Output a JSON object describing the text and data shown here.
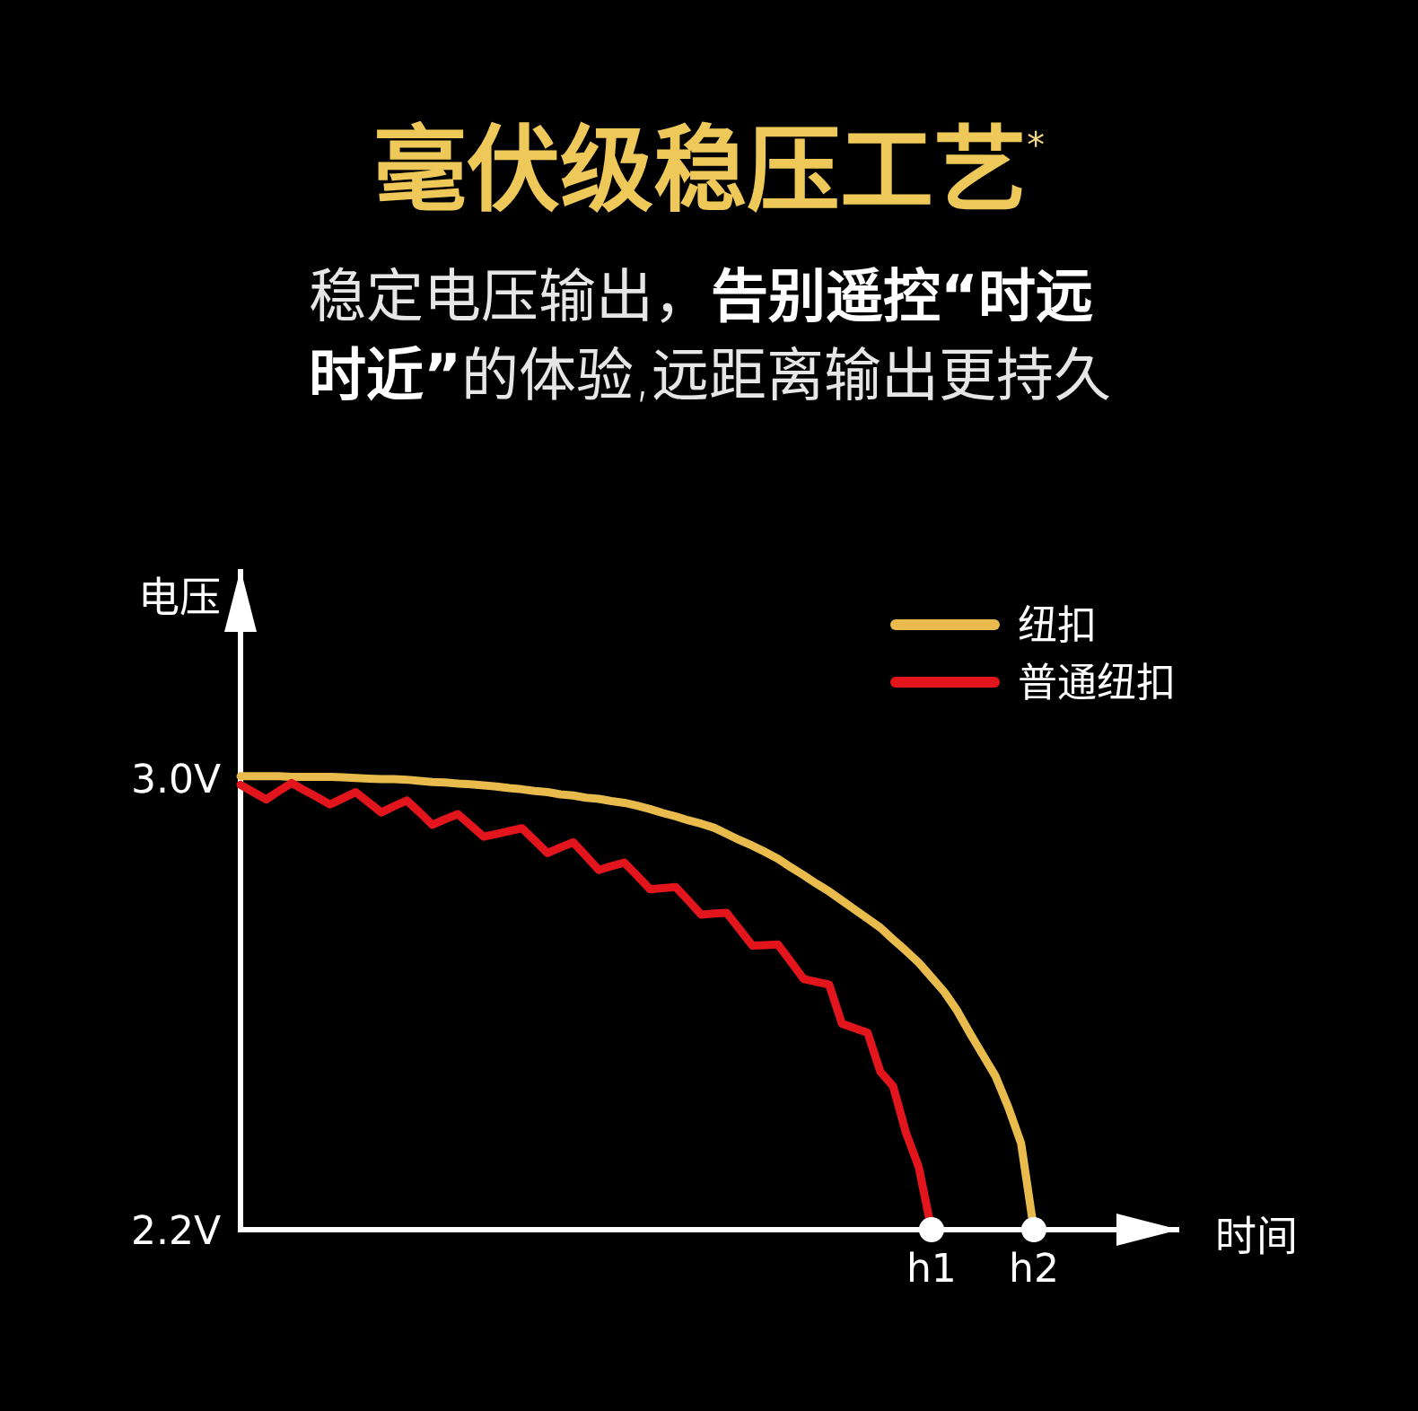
{
  "chart_data": {
    "type": "line",
    "title": "毫伏级稳压工艺$^{*}$",
    "subtitle": "稳定电压输出，**告别遥控“时远时近”**的体验,远距离输出更持久",
    "xlabel": "时间",
    "ylabel": "电压",
    "categories": [
      null,
      null,
      null,
      null,
      null,
      null,
      null,
      null,
      null,
      null,
      null,
      null,
      null,
      null,
      null,
      null,
      null,
      null,
      null,
      null,
      null,
      null,
      null,
      null,
      null,
      null,
      null,
      null,
      null,
      null,
      null,
      null,
      null,
      null,
      null,
      null,
      null,
      null,
      null,
      null,
      null,
      null,
      null,
      null,
      null,
      null,
      null,
      null,
      null,
      null,
      null,
      null,
      null,
      null,
      "h1",
      null,
      null,
      null,
      null,
      null,
      null,
      null,
      "h2"
    ],
    "ylim": [
      2.2,
      3.37
    ],
    "yticks": [
      {
        "value": 3.0,
        "label": "3.0V"
      },
      {
        "value": 2.2,
        "label": "2.2V"
      }
    ],
    "legend": "top right",
    "series": [
      {
        "name": "纽扣",
        "color": "#e8bb4c",
        "values": [
          3.003,
          3.003,
          3.003,
          3.003,
          3.002,
          3.002,
          3.002,
          3.002,
          3.001,
          3.0,
          2.999,
          2.998,
          2.998,
          2.997,
          2.995,
          2.993,
          2.992,
          2.99,
          2.989,
          2.987,
          2.985,
          2.982,
          2.98,
          2.977,
          2.975,
          2.971,
          2.969,
          2.965,
          2.963,
          2.959,
          2.956,
          2.951,
          2.945,
          2.938,
          2.932,
          2.925,
          2.919,
          2.912,
          2.901,
          2.89,
          2.88,
          2.869,
          2.857,
          2.842,
          2.828,
          2.813,
          2.799,
          2.783,
          2.767,
          2.751,
          2.735,
          2.714,
          2.694,
          2.673,
          2.647,
          2.621,
          2.588,
          2.548,
          2.51,
          2.472,
          2.417,
          2.353,
          2.2
        ]
      },
      {
        "name": "普通纽扣",
        "color": "#e3151c",
        "values": [
          2.988,
          2.975,
          2.962,
          2.977,
          2.991,
          2.978,
          2.966,
          2.953,
          2.964,
          2.975,
          2.957,
          2.939,
          2.95,
          2.96,
          2.939,
          2.917,
          2.927,
          2.936,
          2.916,
          2.896,
          2.901,
          2.906,
          2.911,
          2.889,
          2.867,
          2.877,
          2.886,
          2.862,
          2.837,
          2.844,
          2.85,
          2.827,
          2.803,
          2.805,
          2.807,
          2.783,
          2.758,
          2.76,
          2.761,
          2.732,
          2.703,
          2.704,
          2.705,
          2.675,
          2.644,
          2.639,
          2.634,
          2.565,
          2.557,
          2.549,
          2.48,
          2.454,
          2.372,
          2.311,
          2.2,
          null,
          null,
          null,
          null,
          null,
          null,
          null,
          null
        ]
      },
      {
        "type": "scatter",
        "color": "#ffffff",
        "marker": "circle",
        "values": [
          null,
          null,
          null,
          null,
          null,
          null,
          null,
          null,
          null,
          null,
          null,
          null,
          null,
          null,
          null,
          null,
          null,
          null,
          null,
          null,
          null,
          null,
          null,
          null,
          null,
          null,
          null,
          null,
          null,
          null,
          null,
          null,
          null,
          null,
          null,
          null,
          null,
          null,
          null,
          null,
          null,
          null,
          null,
          null,
          null,
          null,
          null,
          null,
          null,
          null,
          null,
          null,
          null,
          null,
          2.2,
          null,
          null,
          null,
          null,
          null,
          null,
          null,
          2.2
        ]
      }
    ]
  }
}
